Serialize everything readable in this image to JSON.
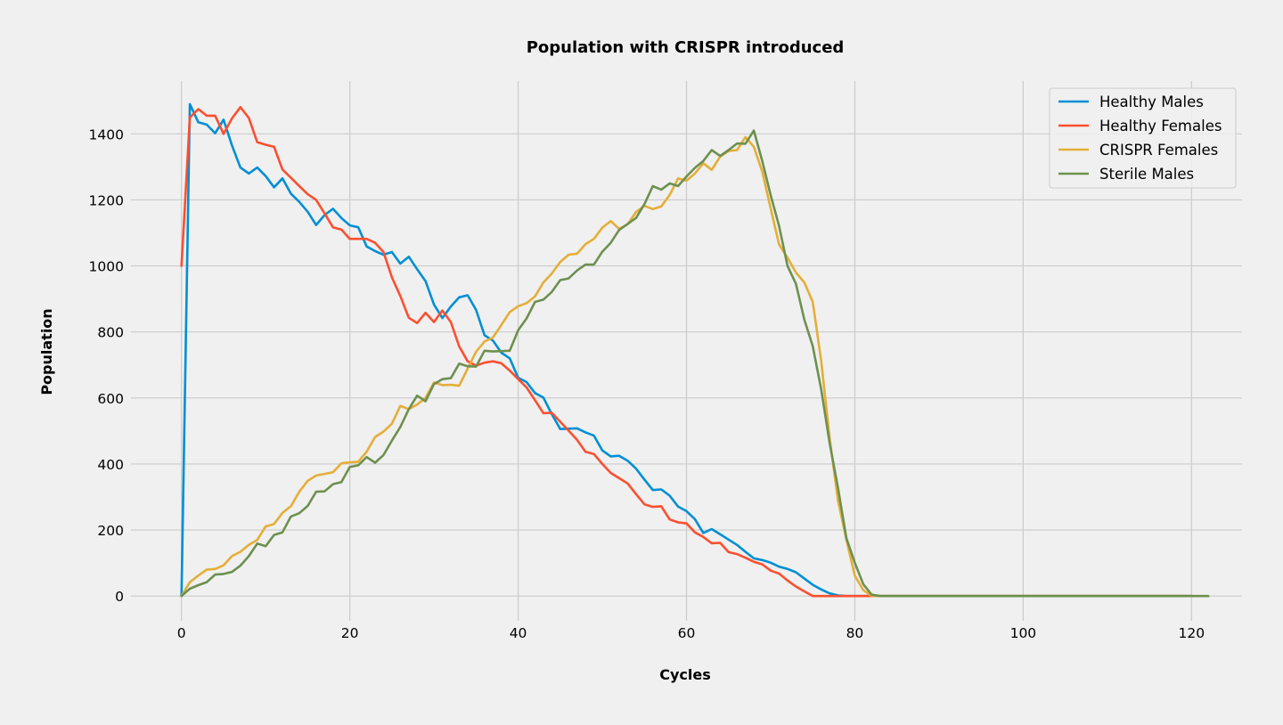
{
  "chart_data": {
    "type": "line",
    "title": "Population with CRISPR introduced",
    "xlabel": "Cycles",
    "ylabel": "Population",
    "xlim": [
      -6,
      126
    ],
    "ylim": [
      -75,
      1560
    ],
    "xticks": [
      0,
      20,
      40,
      60,
      80,
      100,
      120
    ],
    "yticks": [
      0,
      200,
      400,
      600,
      800,
      1000,
      1200,
      1400
    ],
    "grid": true,
    "legend_position": "top-right",
    "x": "cycles 0 to 120, step 1",
    "series": [
      {
        "name": "Healthy Males",
        "color": "#008fd5",
        "values": [
          0,
          1490,
          1435,
          1428,
          1402,
          1443,
          1365,
          1298,
          1280,
          1298,
          1272,
          1238,
          1265,
          1219,
          1194,
          1164,
          1124,
          1154,
          1173,
          1145,
          1123,
          1117,
          1059,
          1045,
          1034,
          1042,
          1007,
          1028,
          990,
          954,
          883,
          842,
          877,
          905,
          911,
          867,
          790,
          774,
          737,
          720,
          661,
          648,
          615,
          601,
          551,
          506,
          507,
          508,
          496,
          486,
          441,
          423,
          425,
          410,
          386,
          353,
          321,
          323,
          304,
          271,
          257,
          233,
          191,
          203,
          187,
          171,
          155,
          134,
          114,
          109,
          101,
          89,
          82,
          72,
          53,
          34,
          20,
          8,
          2,
          0,
          0,
          0,
          0,
          0,
          0,
          0,
          0,
          0,
          0,
          0,
          0,
          0,
          0,
          0,
          0,
          0,
          0,
          0,
          0,
          0,
          0,
          0,
          0,
          0,
          0,
          0,
          0,
          0,
          0,
          0,
          0,
          0,
          0,
          0,
          0,
          0,
          0,
          0,
          0,
          0,
          0
        ]
      },
      {
        "name": "Healthy Females",
        "color": "#fc4f30",
        "values": [
          1000,
          1450,
          1475,
          1455,
          1455,
          1400,
          1447,
          1481,
          1448,
          1375,
          1367,
          1361,
          1292,
          1267,
          1242,
          1217,
          1200,
          1159,
          1117,
          1110,
          1082,
          1082,
          1082,
          1070,
          1042,
          965,
          909,
          843,
          827,
          858,
          830,
          865,
          830,
          756,
          711,
          698,
          707,
          711,
          705,
          683,
          657,
          632,
          593,
          554,
          555,
          528,
          501,
          473,
          437,
          430,
          400,
          373,
          357,
          341,
          309,
          278,
          270,
          272,
          232,
          223,
          220,
          193,
          179,
          160,
          161,
          133,
          127,
          116,
          104,
          96,
          77,
          68,
          47,
          29,
          14,
          0,
          0,
          0,
          0,
          0,
          0,
          0,
          0,
          0,
          0,
          0,
          0,
          0,
          0,
          0,
          0,
          0,
          0,
          0,
          0,
          0,
          0,
          0,
          0,
          0,
          0,
          0,
          0,
          0,
          0,
          0,
          0,
          0,
          0,
          0,
          0,
          0,
          0,
          0,
          0,
          0,
          0,
          0,
          0,
          0,
          0
        ]
      },
      {
        "name": "CRISPR Females",
        "color": "#e5ae38",
        "values": [
          0,
          42,
          62,
          80,
          82,
          93,
          121,
          134,
          155,
          170,
          211,
          218,
          252,
          272,
          316,
          349,
          365,
          370,
          375,
          402,
          405,
          407,
          437,
          482,
          498,
          522,
          576,
          566,
          580,
          600,
          647,
          639,
          640,
          637,
          689,
          740,
          771,
          783,
          821,
          860,
          878,
          887,
          908,
          950,
          977,
          1012,
          1034,
          1037,
          1066,
          1082,
          1116,
          1136,
          1112,
          1126,
          1163,
          1182,
          1172,
          1180,
          1215,
          1265,
          1258,
          1280,
          1311,
          1291,
          1331,
          1348,
          1351,
          1390,
          1361,
          1286,
          1174,
          1065,
          1025,
          980,
          950,
          891,
          712,
          480,
          290,
          170,
          62,
          18,
          0,
          0,
          0,
          0,
          0,
          0,
          0,
          0,
          0,
          0,
          0,
          0,
          0,
          0,
          0,
          0,
          0,
          0,
          0,
          0,
          0,
          0,
          0,
          0,
          0,
          0,
          0,
          0,
          0,
          0,
          0,
          0,
          0,
          0,
          0,
          0,
          0,
          0,
          0
        ]
      },
      {
        "name": "Sterile Males",
        "color": "#6d904f",
        "values": [
          0,
          22,
          33,
          42,
          65,
          67,
          73,
          92,
          121,
          159,
          151,
          185,
          193,
          241,
          251,
          273,
          316,
          317,
          339,
          345,
          391,
          396,
          421,
          404,
          427,
          471,
          512,
          566,
          607,
          590,
          642,
          657,
          660,
          704,
          696,
          695,
          743,
          741,
          742,
          743,
          805,
          841,
          891,
          898,
          921,
          957,
          962,
          986,
          1004,
          1004,
          1043,
          1070,
          1109,
          1127,
          1145,
          1187,
          1242,
          1231,
          1250,
          1242,
          1271,
          1297,
          1318,
          1351,
          1333,
          1351,
          1371,
          1370,
          1410,
          1318,
          1214,
          1121,
          1000,
          946,
          837,
          757,
          626,
          464,
          328,
          175,
          101,
          36,
          4,
          0,
          0,
          0,
          0,
          0,
          0,
          0,
          0,
          0,
          0,
          0,
          0,
          0,
          0,
          0,
          0,
          0,
          0,
          0,
          0,
          0,
          0,
          0,
          0,
          0,
          0,
          0,
          0,
          0,
          0,
          0,
          0,
          0,
          0,
          0,
          0,
          0,
          0,
          0,
          0
        ]
      }
    ]
  }
}
